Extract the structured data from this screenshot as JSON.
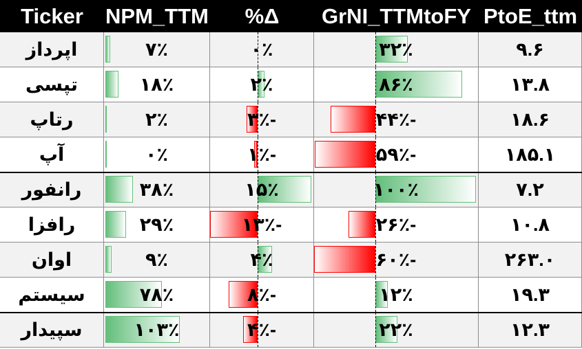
{
  "columns": [
    {
      "key": "ticker",
      "label": "Ticker"
    },
    {
      "key": "npm",
      "label": "NPM_TTM"
    },
    {
      "key": "delta",
      "label": "%Δ"
    },
    {
      "key": "grni",
      "label": "GrNI_TTMtoFY"
    },
    {
      "key": "ptoe",
      "label": "PtoE_ttm"
    }
  ],
  "rows": [
    {
      "ticker": "اپرداز",
      "npm": "۷٪",
      "npm_value": 7,
      "delta": "۰٪",
      "delta_value": 0,
      "grni": "۳۲٪",
      "grni_value": 32,
      "ptoe": "۹.۶"
    },
    {
      "ticker": "تپسی",
      "npm": "۱۸٪",
      "npm_value": 18,
      "delta": "۲٪",
      "delta_value": 2,
      "grni": "۸۶٪",
      "grni_value": 86,
      "ptoe": "۱۳.۸"
    },
    {
      "ticker": "رتاپ",
      "npm": "۲٪",
      "npm_value": 2,
      "delta": "-۳٪",
      "delta_value": -3,
      "grni": "-۴۴٪",
      "grni_value": -44,
      "ptoe": "۱۸.۶"
    },
    {
      "ticker": "آپ",
      "npm": "۰٪",
      "npm_value": 0,
      "delta": "-۱٪",
      "delta_value": -1,
      "grni": "-۵۹٪",
      "grni_value": -59,
      "ptoe": "۱۸۵.۱"
    },
    {
      "ticker": "رانفور",
      "npm": "۳۸٪",
      "npm_value": 38,
      "delta": "۱۵٪",
      "delta_value": 15,
      "grni": "۱۰۰٪",
      "grni_value": 100,
      "ptoe": "۷.۲"
    },
    {
      "ticker": "رافزا",
      "npm": "۲۹٪",
      "npm_value": 29,
      "delta": "-۱۳٪",
      "delta_value": -13,
      "grni": "-۲۶٪",
      "grni_value": -26,
      "ptoe": "۱۰.۸"
    },
    {
      "ticker": "اوان",
      "npm": "۹٪",
      "npm_value": 9,
      "delta": "۴٪",
      "delta_value": 4,
      "grni": "-۶۰٪",
      "grni_value": -60,
      "ptoe": "۲۶۳.۰"
    },
    {
      "ticker": "سیستم",
      "npm": "۷۸٪",
      "npm_value": 78,
      "delta": "-۸٪",
      "delta_value": -8,
      "grni": "۱۲٪",
      "grni_value": 12,
      "ptoe": "۱۹.۳"
    },
    {
      "ticker": "سپیدار",
      "npm": "۱۰۳٪",
      "npm_value": 103,
      "delta": "-۴٪",
      "delta_value": -4,
      "grni": "۲۲٪",
      "grni_value": 22,
      "ptoe": "۱۲.۳"
    }
  ],
  "colors": {
    "header_bg": "#000000",
    "header_fg": "#ffffff",
    "positive_bar": "#63be7b",
    "negative_bar": "#ff0000",
    "row_alt": "#f2f2f2",
    "gridline": "#8c8c8c"
  }
}
